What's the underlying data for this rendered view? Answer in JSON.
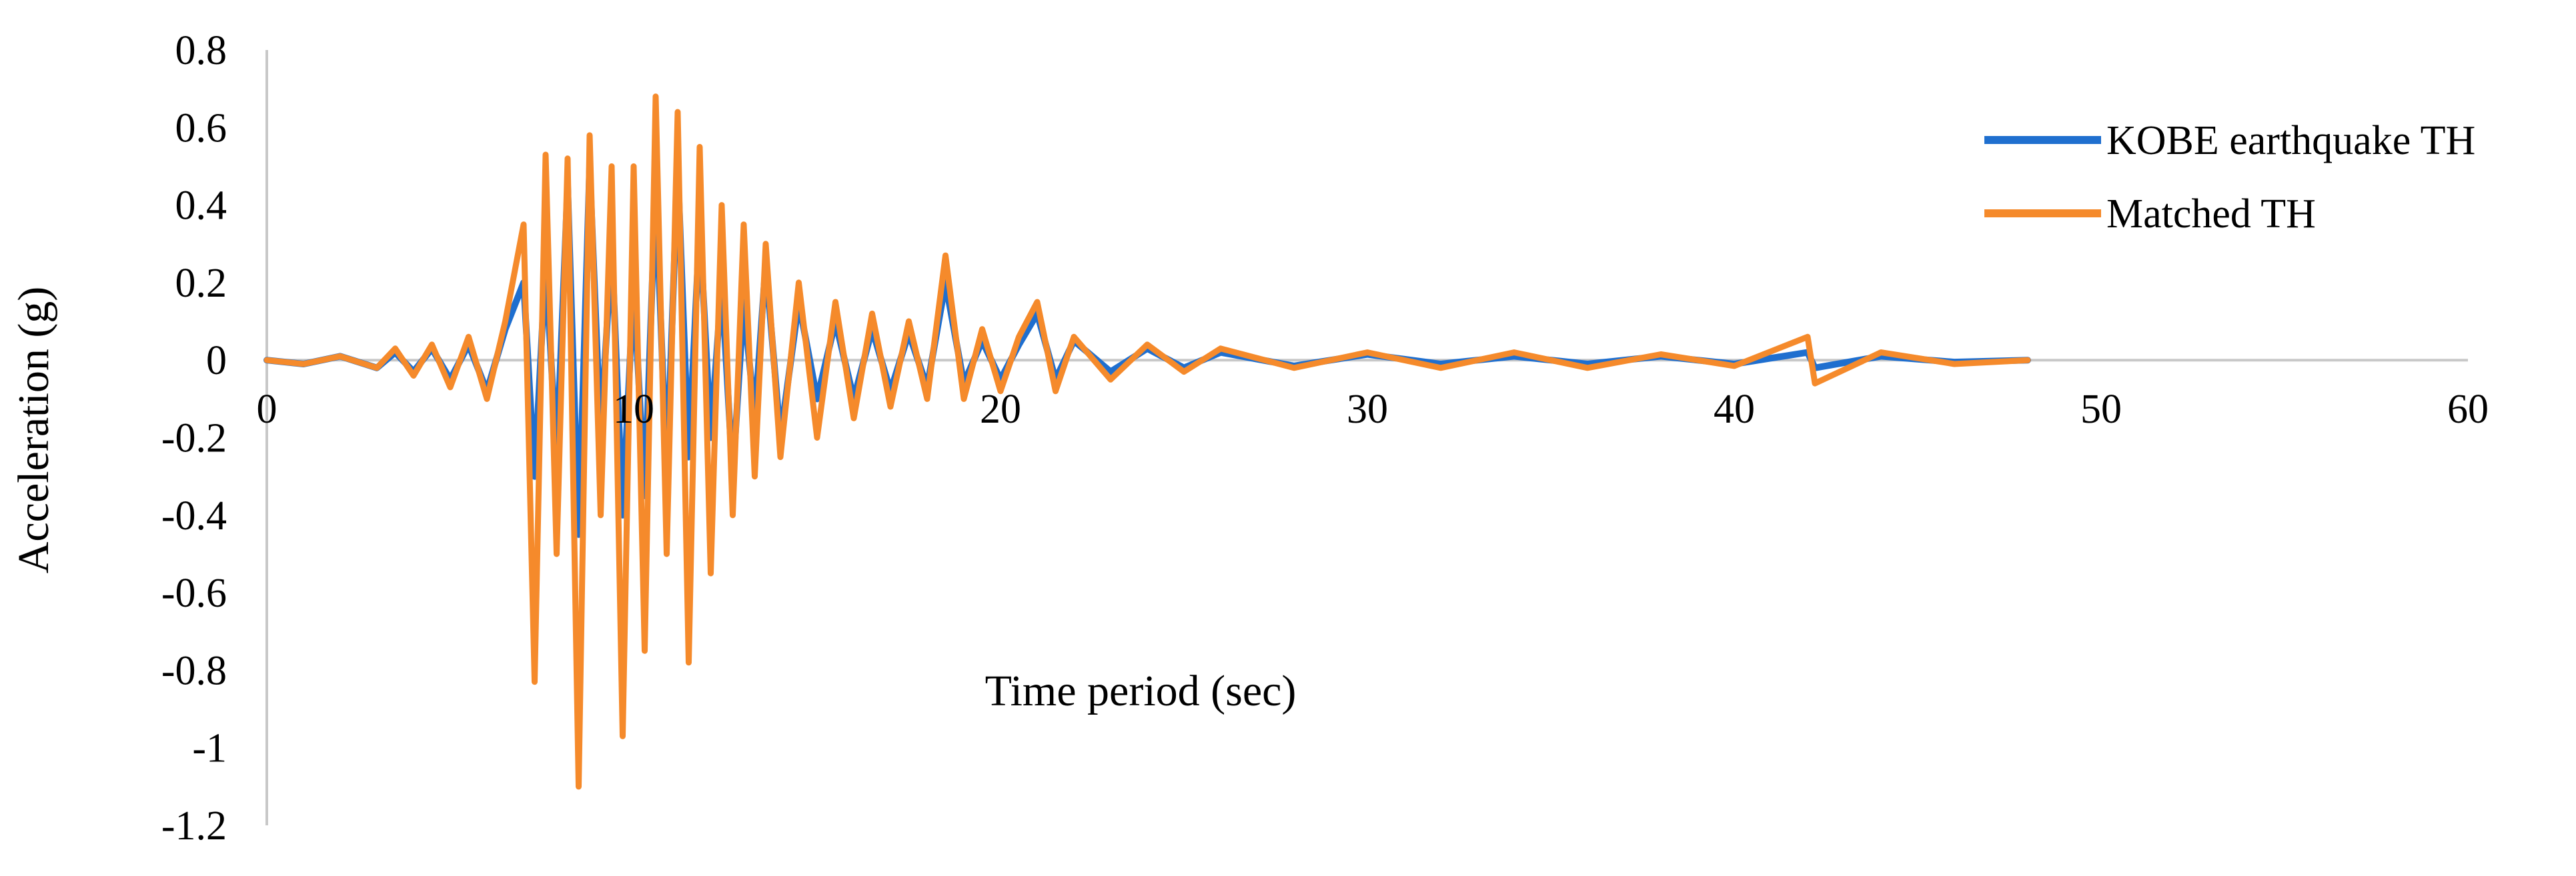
{
  "chart_data": {
    "type": "line",
    "title": "",
    "xlabel": "Time period (sec)",
    "ylabel": "Acceleration (g)",
    "xlim": [
      0,
      60
    ],
    "ylim": [
      -1.2,
      0.8
    ],
    "x_ticks": [
      "0",
      "10",
      "20",
      "30",
      "40",
      "50",
      "60"
    ],
    "y_ticks": [
      "0.8",
      "0.6",
      "0.4",
      "0.2",
      "0",
      "-0.2",
      "-0.4",
      "-0.6",
      "-0.8",
      "-1",
      "-1.2"
    ],
    "grid": false,
    "legend_position": "top-right",
    "series": [
      {
        "name": "KOBE earthquake TH",
        "color": "#1f6fcf",
        "x": [
          0,
          1,
          2,
          3,
          3.5,
          4,
          4.5,
          5,
          5.5,
          6,
          6.5,
          7,
          7.3,
          7.6,
          7.9,
          8.2,
          8.5,
          8.8,
          9.1,
          9.4,
          9.7,
          10,
          10.3,
          10.6,
          10.9,
          11.2,
          11.5,
          11.8,
          12.1,
          12.4,
          12.7,
          13,
          13.3,
          13.6,
          14,
          14.5,
          15,
          15.5,
          16,
          16.5,
          17,
          17.5,
          18,
          18.5,
          19,
          19.5,
          20,
          20.5,
          21,
          21.5,
          22,
          23,
          24,
          25,
          26,
          28,
          30,
          32,
          34,
          36,
          38,
          40,
          42,
          42.2,
          44,
          46,
          48
        ],
        "values": [
          0,
          -0.01,
          0.01,
          -0.02,
          0.02,
          -0.03,
          0.03,
          -0.05,
          0.04,
          -0.08,
          0.08,
          0.2,
          -0.3,
          0.25,
          -0.25,
          0.45,
          -0.45,
          0.5,
          -0.2,
          0.3,
          -0.4,
          0.2,
          -0.35,
          0.45,
          -0.3,
          0.5,
          -0.25,
          0.35,
          -0.2,
          0.2,
          -0.3,
          0.15,
          -0.15,
          0.25,
          -0.2,
          0.15,
          -0.1,
          0.1,
          -0.1,
          0.08,
          -0.08,
          0.07,
          -0.07,
          0.2,
          -0.06,
          0.05,
          -0.05,
          0.04,
          0.12,
          -0.05,
          0.05,
          -0.03,
          0.03,
          -0.02,
          0.02,
          -0.015,
          0.015,
          -0.01,
          0.01,
          -0.01,
          0.01,
          -0.01,
          0.02,
          -0.02,
          0.01,
          -0.005,
          0
        ]
      },
      {
        "name": "Matched TH",
        "color": "#f58a2b",
        "x": [
          0,
          1,
          2,
          3,
          3.5,
          4,
          4.5,
          5,
          5.5,
          6,
          6.5,
          7,
          7.3,
          7.6,
          7.9,
          8.2,
          8.5,
          8.8,
          9.1,
          9.4,
          9.7,
          10,
          10.3,
          10.6,
          10.9,
          11.2,
          11.5,
          11.8,
          12.1,
          12.4,
          12.7,
          13,
          13.3,
          13.6,
          14,
          14.5,
          15,
          15.5,
          16,
          16.5,
          17,
          17.5,
          18,
          18.5,
          19,
          19.5,
          20,
          20.5,
          21,
          21.5,
          22,
          23,
          24,
          25,
          26,
          28,
          30,
          32,
          34,
          36,
          38,
          40,
          42,
          42.2,
          44,
          46,
          48
        ],
        "values": [
          0,
          -0.01,
          0.01,
          -0.02,
          0.03,
          -0.04,
          0.04,
          -0.07,
          0.06,
          -0.1,
          0.1,
          0.35,
          -0.83,
          0.53,
          -0.5,
          0.52,
          -1.1,
          0.58,
          -0.4,
          0.5,
          -0.97,
          0.5,
          -0.75,
          0.68,
          -0.5,
          0.64,
          -0.78,
          0.55,
          -0.55,
          0.4,
          -0.4,
          0.35,
          -0.3,
          0.3,
          -0.25,
          0.2,
          -0.2,
          0.15,
          -0.15,
          0.12,
          -0.12,
          0.1,
          -0.1,
          0.27,
          -0.1,
          0.08,
          -0.08,
          0.06,
          0.15,
          -0.08,
          0.06,
          -0.05,
          0.04,
          -0.03,
          0.03,
          -0.02,
          0.02,
          -0.02,
          0.02,
          -0.02,
          0.015,
          -0.015,
          0.06,
          -0.06,
          0.02,
          -0.01,
          0
        ]
      }
    ]
  }
}
